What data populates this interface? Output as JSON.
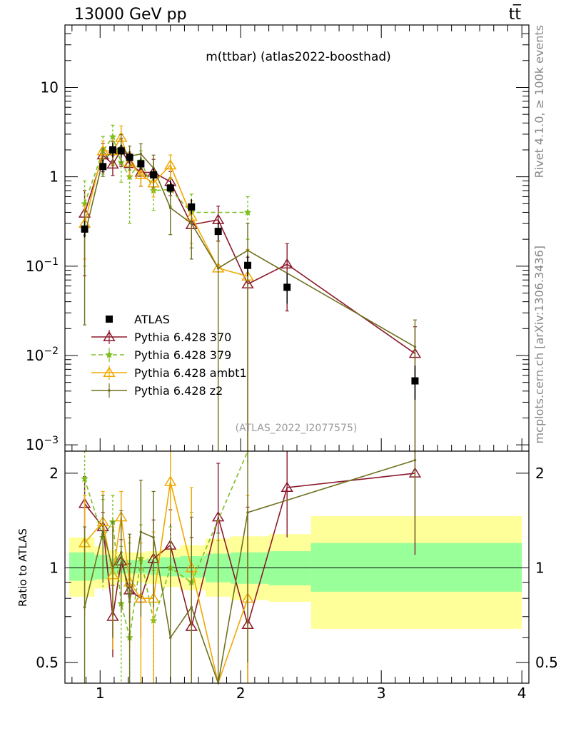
{
  "header": {
    "left": "13000 GeV pp",
    "right": "tt̅"
  },
  "plot_title": "m(ttbar) (atlas2022-boosthad)",
  "analysis_label": "(ATLAS_2022_I2077575)",
  "side_labels": {
    "rivet": "Rivet 4.1.0, ≥ 100k events",
    "mcplots": "mcplots.cern.ch [arXiv:1306.3436]"
  },
  "colors": {
    "data": "#000000",
    "p370": "#8b1a2b",
    "p379": "#7cbf1e",
    "ambt1": "#f0a800",
    "z2": "#707020",
    "band_inner": "#99ff99",
    "band_outer": "#ffff99"
  },
  "chart_data": {
    "type": "line",
    "title": "m(ttbar) (atlas2022-boosthad)",
    "xlim": [
      0.75,
      4.05
    ],
    "main": {
      "ylim": [
        0.00085,
        50
      ],
      "yscale": "log",
      "yticks": [
        0.001,
        0.01,
        0.1,
        1,
        10
      ],
      "yticklabels": [
        {
          "base": "10",
          "exp": "−3"
        },
        {
          "base": "10",
          "exp": "−2"
        },
        {
          "base": "10",
          "exp": "−1"
        },
        {
          "base": "1",
          "exp": ""
        },
        {
          "base": "10",
          "exp": ""
        }
      ]
    },
    "ratio": {
      "ylabel": "Ratio to ATLAS",
      "ylim": [
        0.43,
        2.35
      ],
      "yscale": "log",
      "yticks": [
        0.5,
        1,
        2
      ],
      "yticklabels": [
        "0.5",
        "1",
        "2"
      ]
    },
    "xticks": [
      1,
      2,
      3,
      4
    ],
    "xticklabels": [
      "1",
      "2",
      "3",
      "4"
    ],
    "data": {
      "name": "ATLAS",
      "x": [
        0.89,
        1.02,
        1.09,
        1.15,
        1.21,
        1.29,
        1.38,
        1.5,
        1.65,
        1.84,
        2.05,
        2.33,
        3.24
      ],
      "y": [
        0.26,
        1.3,
        2.0,
        1.95,
        1.65,
        1.4,
        1.05,
        0.75,
        0.46,
        0.245,
        0.102,
        0.058,
        0.0052
      ],
      "yerr_up": [
        0.06,
        0.25,
        0.4,
        0.35,
        0.3,
        0.25,
        0.2,
        0.15,
        0.1,
        0.06,
        0.03,
        0.025,
        0.0025
      ],
      "yerr_down": [
        0.05,
        0.2,
        0.35,
        0.3,
        0.25,
        0.2,
        0.15,
        0.12,
        0.08,
        0.05,
        0.025,
        0.02,
        0.002
      ]
    },
    "bands": {
      "edges": [
        0.78,
        0.96,
        1.06,
        1.12,
        1.18,
        1.25,
        1.33,
        1.43,
        1.57,
        1.75,
        1.93,
        2.2,
        2.5,
        4.0
      ],
      "inner": [
        [
          0.91,
          1.12
        ],
        [
          0.92,
          1.1
        ],
        [
          0.95,
          1.07
        ],
        [
          0.96,
          1.06
        ],
        [
          0.96,
          1.06
        ],
        [
          0.96,
          1.06
        ],
        [
          0.95,
          1.07
        ],
        [
          0.94,
          1.08
        ],
        [
          0.93,
          1.09
        ],
        [
          0.9,
          1.11
        ],
        [
          0.89,
          1.12
        ],
        [
          0.88,
          1.13
        ],
        [
          0.84,
          1.2
        ]
      ],
      "outer": [
        [
          0.81,
          1.25
        ],
        [
          0.86,
          1.17
        ],
        [
          0.88,
          1.14
        ],
        [
          0.9,
          1.12
        ],
        [
          0.9,
          1.12
        ],
        [
          0.9,
          1.12
        ],
        [
          0.89,
          1.13
        ],
        [
          0.87,
          1.15
        ],
        [
          0.85,
          1.18
        ],
        [
          0.81,
          1.24
        ],
        [
          0.79,
          1.26
        ],
        [
          0.78,
          1.28
        ],
        [
          0.64,
          1.46
        ]
      ]
    },
    "series": [
      {
        "key": "p370",
        "name": "Pythia 6.428 370",
        "marker": "triangle-open",
        "dash": "",
        "x": [
          0.89,
          1.02,
          1.09,
          1.15,
          1.21,
          1.29,
          1.38,
          1.5,
          1.65,
          1.84,
          2.05,
          2.33,
          3.24
        ],
        "y": [
          0.39,
          1.75,
          1.38,
          2.0,
          1.4,
          1.12,
          1.12,
          0.88,
          0.29,
          0.33,
          0.063,
          0.105,
          0.0105
        ],
        "err": [
          0.8,
          0.35,
          0.25,
          0.35,
          0.3,
          0.3,
          0.4,
          0.3,
          0.45,
          0.42,
          1.0,
          0.7,
          1.0
        ],
        "ratio": [
          1.6,
          1.35,
          0.7,
          1.05,
          0.85,
          0.8,
          1.07,
          1.18,
          0.65,
          1.45,
          0.66,
          1.8,
          2.0
        ],
        "ratio_err": [
          0.35,
          0.15,
          0.18,
          0.18,
          0.18,
          0.2,
          0.35,
          0.35,
          0.6,
          0.7,
          0.9,
          0.55,
          0.9
        ]
      },
      {
        "key": "p379",
        "name": "Pythia 6.428 379",
        "marker": "star",
        "dash": "6,4",
        "x": [
          0.89,
          1.02,
          1.09,
          1.15,
          1.21,
          1.29,
          1.38,
          1.5,
          1.65,
          2.05
        ],
        "y": [
          0.5,
          1.95,
          2.8,
          1.45,
          1.0,
          1.5,
          0.7,
          0.72,
          0.4,
          0.4
        ],
        "err": [
          0.8,
          0.45,
          0.35,
          0.4,
          0.7,
          0.3,
          0.4,
          0.35,
          0.6,
          0.5
        ],
        "ratio": [
          1.92,
          1.25,
          1.4,
          0.77,
          0.6,
          1.07,
          0.68,
          1.0,
          0.9,
          2.45
        ],
        "ratio_err": [
          0.45,
          0.4,
          0.3,
          0.4,
          0.6,
          0.3,
          0.3,
          0.35,
          0.6,
          0.3
        ]
      },
      {
        "key": "ambt1",
        "name": "Pythia 6.428 ambt1",
        "marker": "triangle-open",
        "dash": "",
        "x": [
          0.89,
          1.02,
          1.09,
          1.15,
          1.21,
          1.29,
          1.38,
          1.5,
          1.65,
          1.84,
          2.05
        ],
        "y": [
          0.3,
          1.95,
          1.95,
          2.75,
          1.45,
          1.05,
          0.85,
          1.35,
          0.36,
          0.095,
          0.077
        ],
        "err": [
          0.6,
          0.3,
          0.3,
          0.35,
          0.3,
          0.25,
          0.3,
          0.3,
          0.5,
          1.0,
          1.0
        ],
        "ratio": [
          1.2,
          1.4,
          0.95,
          1.45,
          0.9,
          0.8,
          0.8,
          1.88,
          1.0,
          0.42,
          0.8
        ],
        "ratio_err": [
          0.5,
          0.35,
          0.4,
          0.3,
          0.35,
          0.4,
          0.5,
          0.5,
          0.8,
          0.8,
          0.9
        ]
      },
      {
        "key": "z2",
        "name": "Pythia 6.428 z2",
        "marker": "dot",
        "dash": "",
        "x": [
          0.89,
          1.02,
          1.09,
          1.15,
          1.21,
          1.29,
          1.38,
          1.5,
          1.65,
          1.84,
          2.05,
          3.24
        ],
        "y": [
          0.22,
          1.55,
          1.9,
          2.2,
          1.7,
          1.8,
          1.25,
          0.45,
          0.3,
          0.095,
          0.15,
          0.0125
        ],
        "err": [
          0.9,
          0.35,
          0.3,
          0.35,
          0.3,
          0.3,
          0.4,
          0.5,
          0.6,
          1.0,
          1.0,
          1.0
        ],
        "ratio": [
          0.75,
          1.3,
          1.0,
          1.12,
          0.78,
          1.3,
          1.25,
          0.6,
          0.75,
          0.39,
          1.5,
          2.2
        ],
        "ratio_err": [
          0.6,
          0.4,
          0.4,
          0.4,
          0.5,
          0.6,
          0.5,
          0.6,
          0.7,
          0.9,
          1.0,
          1.0
        ]
      }
    ]
  }
}
